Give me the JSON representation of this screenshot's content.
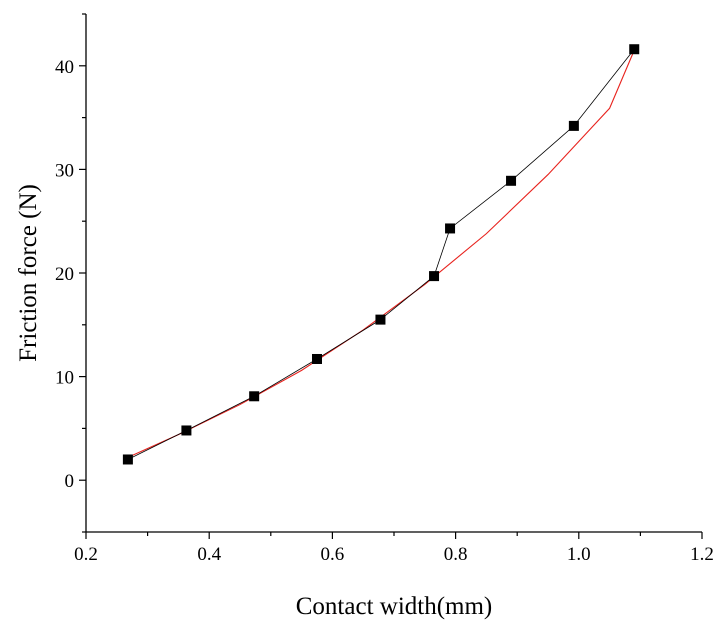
{
  "chart_data": {
    "type": "scatter",
    "title": "",
    "xlabel": "Contact width(mm)",
    "ylabel": "Friction force (N)",
    "xlim": [
      0.2,
      1.2
    ],
    "ylim": [
      -5,
      45
    ],
    "xticks": [
      0.2,
      0.4,
      0.6,
      0.8,
      1.0,
      1.2
    ],
    "xtick_labels": [
      "0.2",
      "0.4",
      "0.6",
      "0.8",
      "1.0",
      "1.2"
    ],
    "yticks": [
      0,
      10,
      20,
      30,
      40
    ],
    "ytick_labels": [
      "0",
      "10",
      "20",
      "30",
      "40"
    ],
    "grid": false,
    "legend": "none",
    "series": [
      {
        "style": "square markers connected by thin line",
        "color": "#000000",
        "x": [
          0.268,
          0.363,
          0.473,
          0.575,
          0.678,
          0.765,
          0.791,
          0.89,
          0.992,
          1.09
        ],
        "y": [
          2.0,
          4.8,
          8.1,
          11.7,
          15.5,
          19.7,
          24.3,
          28.9,
          34.2,
          41.6
        ]
      },
      {
        "style": "fitted curve",
        "color": "#e8231e",
        "x": [
          0.268,
          0.35,
          0.45,
          0.55,
          0.65,
          0.75,
          0.85,
          0.95,
          1.05,
          1.09
        ],
        "y": [
          2.2,
          4.4,
          7.3,
          10.6,
          14.5,
          18.9,
          23.8,
          29.5,
          35.9,
          41.5
        ]
      }
    ]
  }
}
